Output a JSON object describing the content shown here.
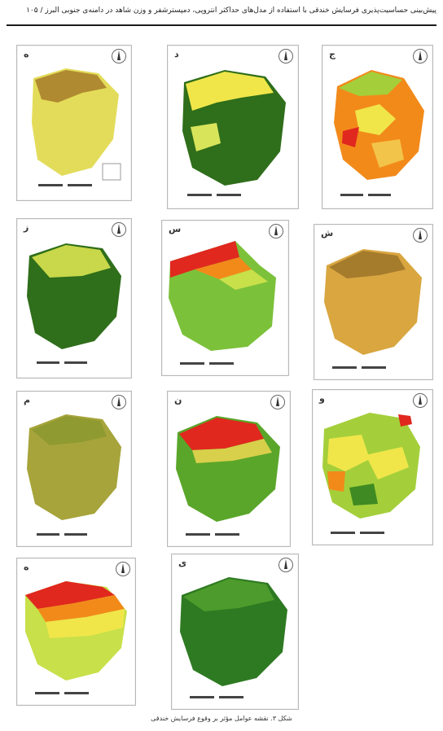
{
  "header": {
    "text": "پیش‌بینی حساسیت‌پذیری فرسایش خندقی با استفاده از مدل‌های حداکثر آنتروپی، دمپستر‌شفر و وزن شاهد در دامنه‌ی جنوبی البرز / ۱۰۵"
  },
  "panels": [
    {
      "letter": "ه"
    },
    {
      "letter": "د"
    },
    {
      "letter": "ج"
    },
    {
      "letter": "ز"
    },
    {
      "letter": "س"
    },
    {
      "letter": "ش"
    },
    {
      "letter": "م"
    },
    {
      "letter": "ن"
    },
    {
      "letter": "و"
    },
    {
      "letter": "ه"
    },
    {
      "letter": "ی"
    }
  ],
  "caption": {
    "text": "شکل ۳. نقشه عوامل مؤثر بر وقوع فرسایش خندقی"
  },
  "colors": {
    "dark_green": "#2f6e1a",
    "mid_green": "#5aa62a",
    "light_green": "#a4cf3a",
    "yellow": "#f0e64a",
    "orange": "#f28a1a",
    "red": "#e0281e",
    "tan": "#c9a44a",
    "brown": "#9b7a2e"
  }
}
